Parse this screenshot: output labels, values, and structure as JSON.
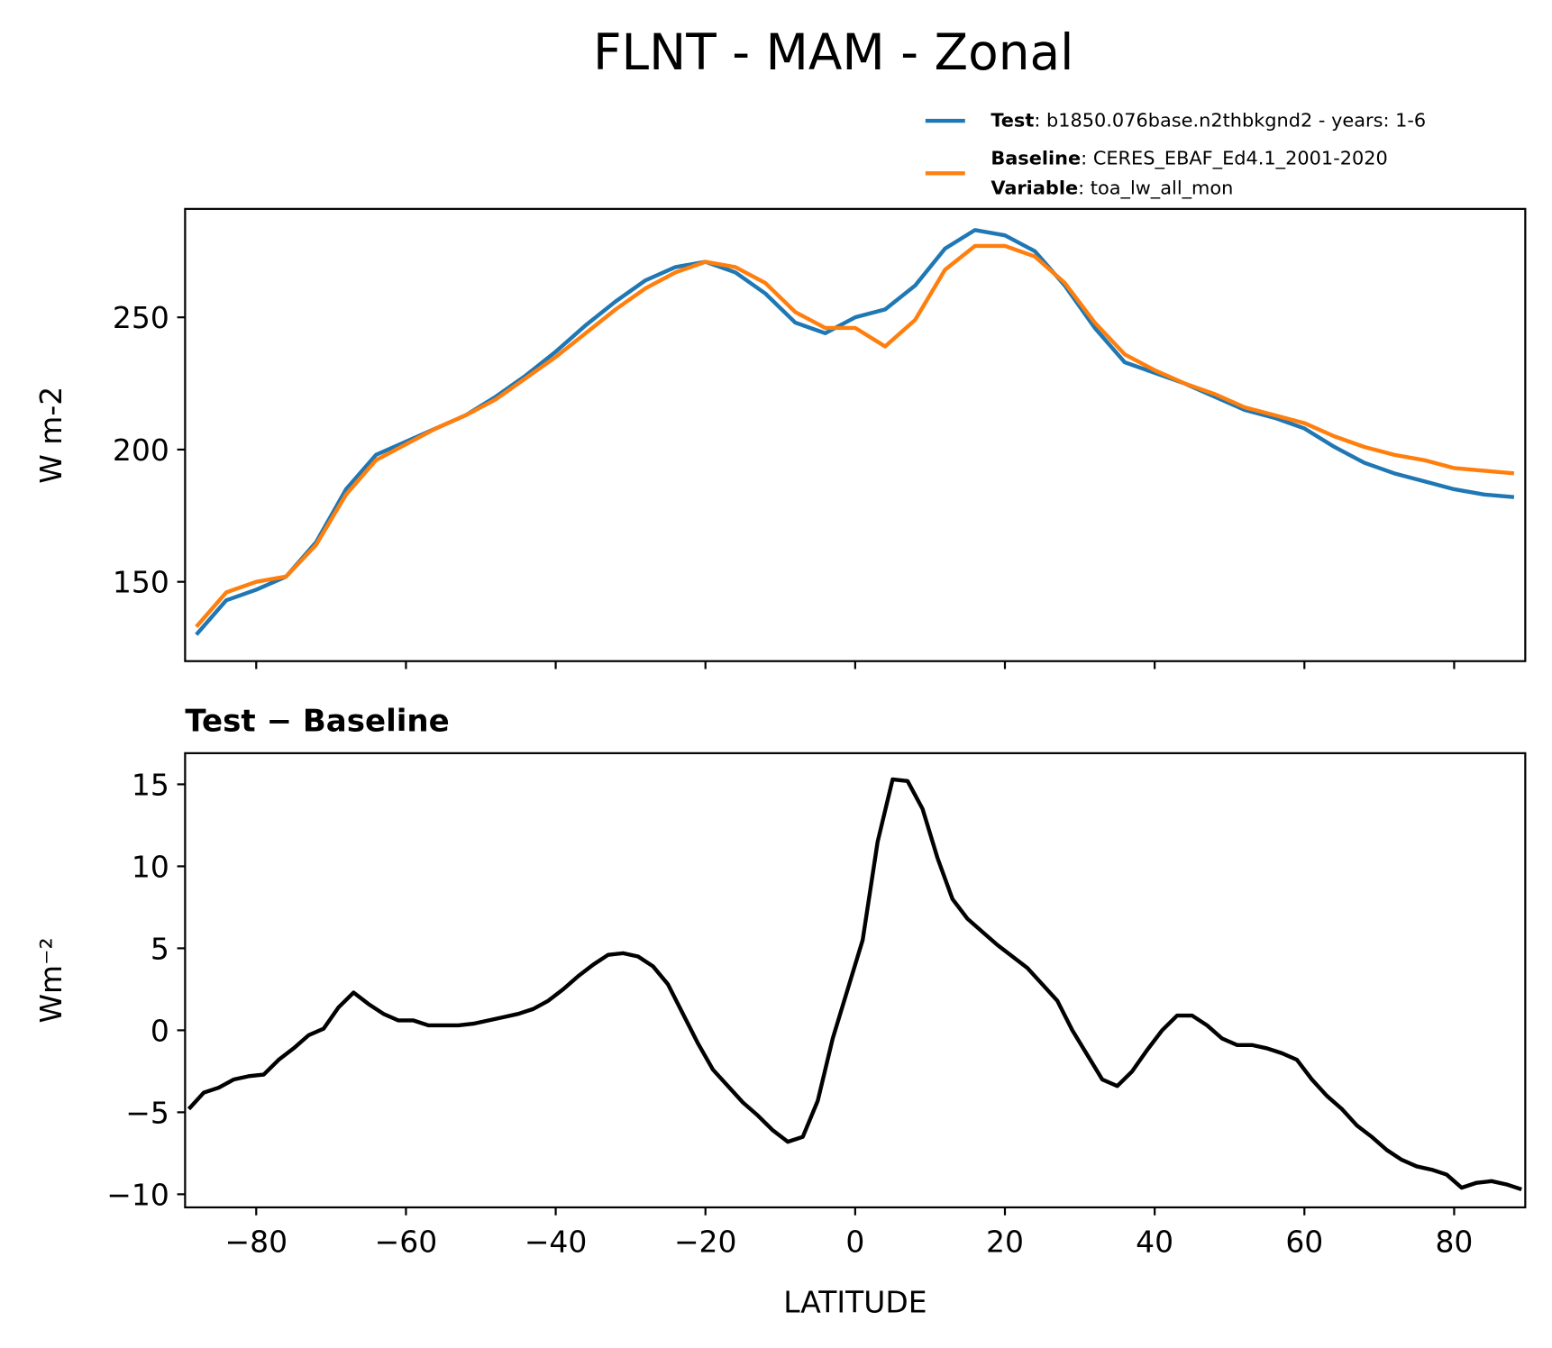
{
  "chart_data": [
    {
      "type": "line",
      "title": "FLNT - MAM - Zonal",
      "ylabel": "W m-2",
      "x": [
        -88,
        -84,
        -80,
        -76,
        -72,
        -68,
        -64,
        -60,
        -56,
        -52,
        -48,
        -44,
        -40,
        -36,
        -32,
        -28,
        -24,
        -20,
        -16,
        -12,
        -8,
        -4,
        0,
        4,
        8,
        12,
        16,
        20,
        24,
        28,
        32,
        36,
        40,
        44,
        48,
        52,
        56,
        60,
        64,
        68,
        72,
        76,
        80,
        84,
        88
      ],
      "series": [
        {
          "name": "Test",
          "description": ": b1850.076base.n2thbkgnd2 - years: 1-6",
          "color": "#1f77b4",
          "values": [
            130,
            143,
            147,
            152,
            165,
            185,
            198,
            203,
            208,
            213,
            220,
            228,
            237,
            247,
            256,
            264,
            269,
            271,
            267,
            259,
            248,
            244,
            250,
            253,
            262,
            276,
            283,
            281,
            275,
            262,
            246,
            233,
            229,
            225,
            220,
            215,
            212,
            208,
            201,
            195,
            191,
            188,
            185,
            183,
            182
          ]
        },
        {
          "name": "Baseline",
          "description": ": CERES_EBAF_Ed4.1_2001-2020",
          "color": "#ff7f0e",
          "values": [
            133,
            146,
            150,
            152,
            164,
            183,
            196,
            202,
            208,
            213,
            219,
            227,
            235,
            244,
            253,
            261,
            267,
            271,
            269,
            263,
            252,
            246,
            246,
            239,
            249,
            268,
            277,
            277,
            273,
            263,
            248,
            236,
            230,
            225,
            221,
            216,
            213,
            210,
            205,
            201,
            198,
            196,
            193,
            192,
            191
          ]
        }
      ],
      "variable": {
        "name": "Variable",
        "description": ": toa_lw_all_mon"
      },
      "xlim": [
        -89.5,
        89.5
      ],
      "xticks": [
        -80,
        -60,
        -40,
        -20,
        0,
        20,
        40,
        60,
        80
      ],
      "xticklabels": false,
      "ylim": [
        120,
        291
      ],
      "yticks": [
        150,
        200,
        250
      ]
    },
    {
      "type": "line",
      "title": "Test − Baseline",
      "ylabel": "Wm⁻²",
      "xlabel": "LATITUDE",
      "x": [
        -89,
        -87,
        -85,
        -83,
        -81,
        -79,
        -77,
        -75,
        -73,
        -71,
        -69,
        -67,
        -65,
        -63,
        -61,
        -59,
        -57,
        -55,
        -53,
        -51,
        -49,
        -47,
        -45,
        -43,
        -41,
        -39,
        -37,
        -35,
        -33,
        -31,
        -29,
        -27,
        -25,
        -23,
        -21,
        -19,
        -17,
        -15,
        -13,
        -11,
        -9,
        -7,
        -5,
        -3,
        -1,
        1,
        3,
        5,
        7,
        9,
        11,
        13,
        15,
        17,
        19,
        21,
        23,
        25,
        27,
        29,
        31,
        33,
        35,
        37,
        39,
        41,
        43,
        45,
        47,
        49,
        51,
        53,
        55,
        57,
        59,
        61,
        63,
        65,
        67,
        69,
        71,
        73,
        75,
        77,
        79,
        81,
        83,
        85,
        87,
        89
      ],
      "series": [
        {
          "color": "#000000",
          "values": [
            -4.8,
            -3.8,
            -3.5,
            -3.0,
            -2.8,
            -2.7,
            -1.8,
            -1.1,
            -0.3,
            0.1,
            1.4,
            2.3,
            1.6,
            1.0,
            0.6,
            0.6,
            0.3,
            0.3,
            0.3,
            0.4,
            0.6,
            0.8,
            1.0,
            1.3,
            1.8,
            2.5,
            3.3,
            4.0,
            4.6,
            4.7,
            4.5,
            3.9,
            2.8,
            1.0,
            -0.8,
            -2.4,
            -3.4,
            -4.4,
            -5.2,
            -6.1,
            -6.8,
            -6.5,
            -4.3,
            -0.5,
            2.5,
            5.5,
            11.5,
            15.3,
            15.2,
            13.5,
            10.5,
            8,
            6.8,
            6,
            5.2,
            4.5,
            3.8,
            2.8,
            1.8,
            0,
            -1.5,
            -3.0,
            -3.4,
            -2.5,
            -1.2,
            0,
            0.9,
            0.9,
            0.3,
            -0.5,
            -0.9,
            -0.9,
            -1.1,
            -1.4,
            -1.8,
            -3.0,
            -4.0,
            -4.8,
            -5.8,
            -6.5,
            -7.3,
            -7.9,
            -8.3,
            -8.5,
            -8.8,
            -9.6,
            -9.3,
            -9.2,
            -9.4,
            -9.7
          ]
        }
      ],
      "xlim": [
        -89.5,
        89.5
      ],
      "xticks": [
        {
          "value": -80,
          "label": "−80"
        },
        {
          "value": -60,
          "label": "−60"
        },
        {
          "value": -40,
          "label": "−40"
        },
        {
          "value": -20,
          "label": "−20"
        },
        0,
        20,
        40,
        60,
        80
      ],
      "xticklabels": true,
      "ylim": [
        -10.8,
        16.9
      ],
      "yticks": [
        {
          "value": -10,
          "label": "−10"
        },
        {
          "value": -5,
          "label": "−5"
        },
        0,
        5,
        10,
        15
      ]
    }
  ]
}
